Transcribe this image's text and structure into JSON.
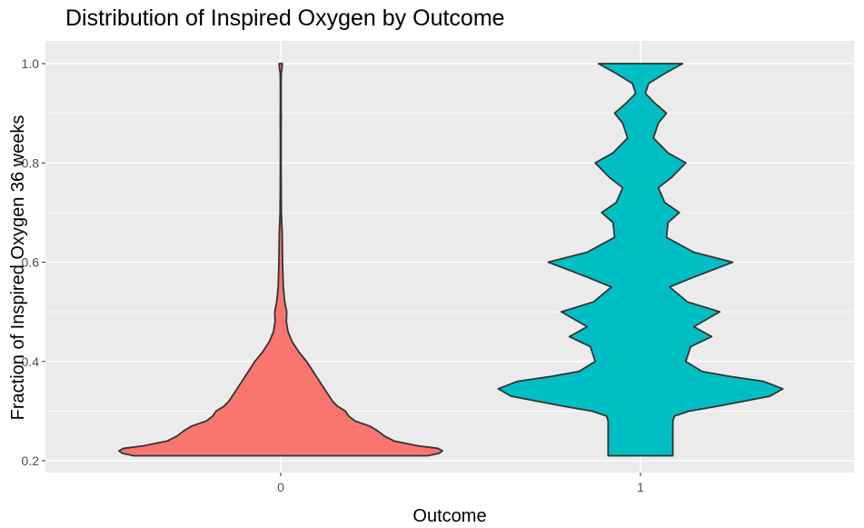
{
  "chart_data": {
    "type": "violin",
    "title": "Distribution of Inspired Oxygen by Outcome",
    "xlabel": "Outcome",
    "ylabel": "Fraction of Inspired Oxygen 36 weeks",
    "categories": [
      "0",
      "1"
    ],
    "ylim": [
      0.2,
      1.0
    ],
    "yticks": [
      0.2,
      0.4,
      0.6,
      0.8,
      1.0
    ],
    "ytick_labels": [
      "0.2",
      "0.4",
      "0.6",
      "0.8",
      "1.0"
    ],
    "grid": true,
    "background": "#EBEBEB",
    "outline_color": "#333333",
    "series": [
      {
        "category": "0",
        "color": "#F8766D",
        "y_min": 0.21,
        "y_max": 1.0,
        "profile": [
          [
            0.21,
            0.91
          ],
          [
            0.215,
            0.98
          ],
          [
            0.22,
            1.0
          ],
          [
            0.225,
            0.97
          ],
          [
            0.23,
            0.85
          ],
          [
            0.24,
            0.7
          ],
          [
            0.25,
            0.64
          ],
          [
            0.26,
            0.6
          ],
          [
            0.27,
            0.55
          ],
          [
            0.28,
            0.46
          ],
          [
            0.29,
            0.42
          ],
          [
            0.3,
            0.4
          ],
          [
            0.31,
            0.35
          ],
          [
            0.32,
            0.32
          ],
          [
            0.34,
            0.28
          ],
          [
            0.36,
            0.24
          ],
          [
            0.38,
            0.2
          ],
          [
            0.4,
            0.16
          ],
          [
            0.42,
            0.11
          ],
          [
            0.44,
            0.07
          ],
          [
            0.46,
            0.045
          ],
          [
            0.48,
            0.035
          ],
          [
            0.5,
            0.037
          ],
          [
            0.52,
            0.025
          ],
          [
            0.55,
            0.016
          ],
          [
            0.58,
            0.013
          ],
          [
            0.6,
            0.011
          ],
          [
            0.63,
            0.01
          ],
          [
            0.66,
            0.009
          ],
          [
            0.68,
            0.006
          ],
          [
            0.7,
            0.004
          ],
          [
            0.75,
            0.003
          ],
          [
            0.8,
            0.0025
          ],
          [
            0.85,
            0.002
          ],
          [
            0.9,
            0.003
          ],
          [
            0.92,
            0.002
          ],
          [
            0.95,
            0.002
          ],
          [
            0.98,
            0.003
          ],
          [
            0.99,
            0.008
          ],
          [
            1.0,
            0.01
          ]
        ]
      },
      {
        "category": "1",
        "color": "#00BFC4",
        "y_min": 0.21,
        "y_max": 1.0,
        "profile": [
          [
            0.21,
            0.2
          ],
          [
            0.25,
            0.2
          ],
          [
            0.28,
            0.2
          ],
          [
            0.29,
            0.21
          ],
          [
            0.3,
            0.3
          ],
          [
            0.31,
            0.48
          ],
          [
            0.33,
            0.8
          ],
          [
            0.345,
            0.88
          ],
          [
            0.36,
            0.76
          ],
          [
            0.37,
            0.55
          ],
          [
            0.38,
            0.38
          ],
          [
            0.4,
            0.28
          ],
          [
            0.43,
            0.31
          ],
          [
            0.45,
            0.44
          ],
          [
            0.47,
            0.33
          ],
          [
            0.5,
            0.49
          ],
          [
            0.52,
            0.29
          ],
          [
            0.55,
            0.18
          ],
          [
            0.57,
            0.33
          ],
          [
            0.6,
            0.57
          ],
          [
            0.62,
            0.33
          ],
          [
            0.65,
            0.16
          ],
          [
            0.68,
            0.17
          ],
          [
            0.7,
            0.24
          ],
          [
            0.72,
            0.15
          ],
          [
            0.75,
            0.11
          ],
          [
            0.77,
            0.19
          ],
          [
            0.8,
            0.28
          ],
          [
            0.82,
            0.17
          ],
          [
            0.85,
            0.08
          ],
          [
            0.88,
            0.11
          ],
          [
            0.9,
            0.16
          ],
          [
            0.92,
            0.09
          ],
          [
            0.94,
            0.03
          ],
          [
            0.96,
            0.05
          ],
          [
            0.98,
            0.15
          ],
          [
            1.0,
            0.26
          ]
        ]
      }
    ]
  }
}
